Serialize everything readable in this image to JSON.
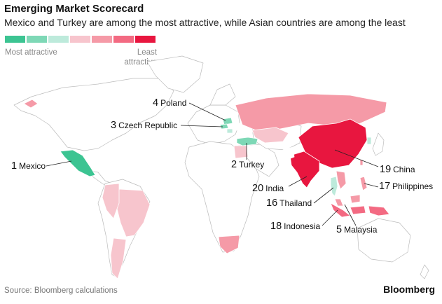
{
  "title": "Emerging Market Scorecard",
  "subtitle": "Mexico and Turkey are among the most attractive, while Asian countries are among the least",
  "legend": {
    "most_label": "Most attractive",
    "least_label": "Least attractive",
    "colors": [
      "#3cc492",
      "#7ed8b6",
      "#bdeadb",
      "#f7c5cd",
      "#f59aa7",
      "#f36a82",
      "#e8163f"
    ]
  },
  "countries": [
    {
      "id": "mexico",
      "rank": "1",
      "name": "Mexico",
      "color": "#3cc492"
    },
    {
      "id": "turkey",
      "rank": "2",
      "name": "Turkey",
      "color": "#7ed8b6"
    },
    {
      "id": "czech",
      "rank": "3",
      "name": "Czech Republic",
      "color": "#7ed8b6"
    },
    {
      "id": "poland",
      "rank": "4",
      "name": "Poland",
      "color": "#7ed8b6"
    },
    {
      "id": "malaysia",
      "rank": "5",
      "name": "Malaysia",
      "color": "#f59aa7"
    },
    {
      "id": "thailand",
      "rank": "16",
      "name": "Thailand",
      "color": "#bdeadb"
    },
    {
      "id": "philippines",
      "rank": "17",
      "name": "Philippines",
      "color": "#f59aa7"
    },
    {
      "id": "indonesia",
      "rank": "18",
      "name": "Indonesia",
      "color": "#f36a82"
    },
    {
      "id": "china",
      "rank": "19",
      "name": "China",
      "color": "#e8163f"
    },
    {
      "id": "india",
      "rank": "20",
      "name": "India",
      "color": "#e8163f"
    }
  ],
  "source": "Source: Bloomberg calculations",
  "brand": "Bloomberg"
}
